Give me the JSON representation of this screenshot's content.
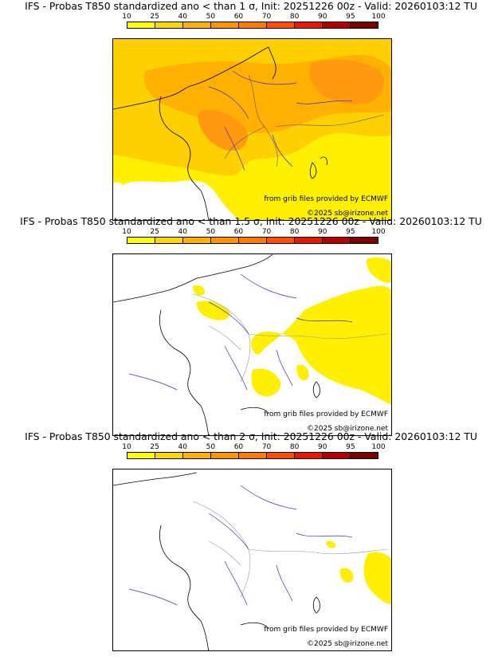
{
  "scale": {
    "labels": [
      "10",
      "25",
      "40",
      "50",
      "60",
      "70",
      "80",
      "90",
      "95",
      "100"
    ],
    "colors": [
      "#ffff00",
      "#ffd700",
      "#ffb000",
      "#ff9400",
      "#ff7a00",
      "#ff4f00",
      "#e51a00",
      "#b40000",
      "#7d0000"
    ]
  },
  "credits": {
    "source": "from grib files provided by ECMWF",
    "copyright": "©2025 sb@irizone.net"
  },
  "panels": [
    {
      "title": "IFS - Probas T850  standardized ano < than 1 σ, Init: 20251226 00z - Valid: 20260103:12 TU",
      "coverage": "extensive"
    },
    {
      "title": "IFS - Probas T850  standardized ano < than 1.5 σ, Init: 20251226 00z - Valid: 20260103:12 TU",
      "coverage": "partial"
    },
    {
      "title": "IFS - Probas T850  standardized ano < than 2 σ, Init: 20251226 00z - Valid: 20260103:12 TU",
      "coverage": "minimal"
    }
  ]
}
